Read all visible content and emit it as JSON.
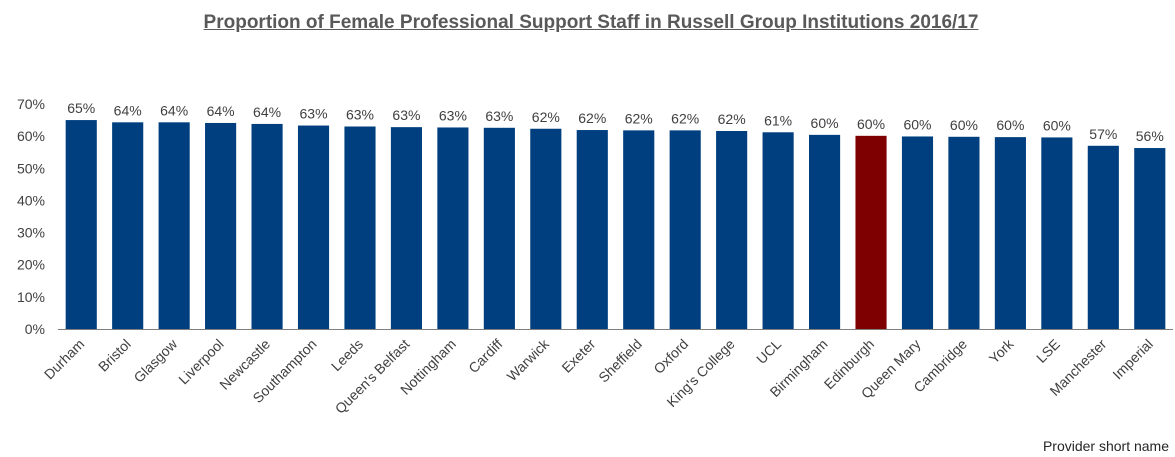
{
  "chart_data": {
    "type": "bar",
    "title": "Proportion of Female Professional Support Staff in Russell Group Institutions 2016/17",
    "xlabel": "Provider short name",
    "ylabel": "",
    "ylim": [
      0,
      70
    ],
    "yticks": [
      "0%",
      "10%",
      "20%",
      "30%",
      "40%",
      "50%",
      "60%",
      "70%"
    ],
    "ytick_values": [
      0,
      10,
      20,
      30,
      40,
      50,
      60,
      70
    ],
    "grid": false,
    "categories": [
      "Durham",
      "Bristol",
      "Glasgow",
      "Liverpool",
      "Newcastle",
      "Southampton",
      "Leeds",
      "Queen's Belfast",
      "Nottingham",
      "Cardiff",
      "Warwick",
      "Exeter",
      "Sheffield",
      "Oxford",
      "King's College",
      "UCL",
      "Birmingham",
      "Edinburgh",
      "Queen Mary",
      "Cambridge",
      "York",
      "LSE",
      "Manchester",
      "Imperial"
    ],
    "values": [
      65.0,
      64.3,
      64.3,
      64.1,
      63.8,
      63.3,
      63.0,
      62.8,
      62.7,
      62.6,
      62.3,
      61.9,
      61.8,
      61.8,
      61.6,
      61.2,
      60.4,
      60.1,
      59.9,
      59.8,
      59.7,
      59.6,
      57.0,
      56.3
    ],
    "data_labels": [
      "65%",
      "64%",
      "64%",
      "64%",
      "64%",
      "63%",
      "63%",
      "63%",
      "63%",
      "63%",
      "62%",
      "62%",
      "62%",
      "62%",
      "62%",
      "61%",
      "60%",
      "60%",
      "60%",
      "60%",
      "60%",
      "60%",
      "57%",
      "56%"
    ],
    "highlight_category": "Edinburgh",
    "colors": {
      "bar": "#003F7F",
      "highlight": "#7F0000",
      "axis": "#7F7F7F",
      "text": "#404040"
    }
  }
}
